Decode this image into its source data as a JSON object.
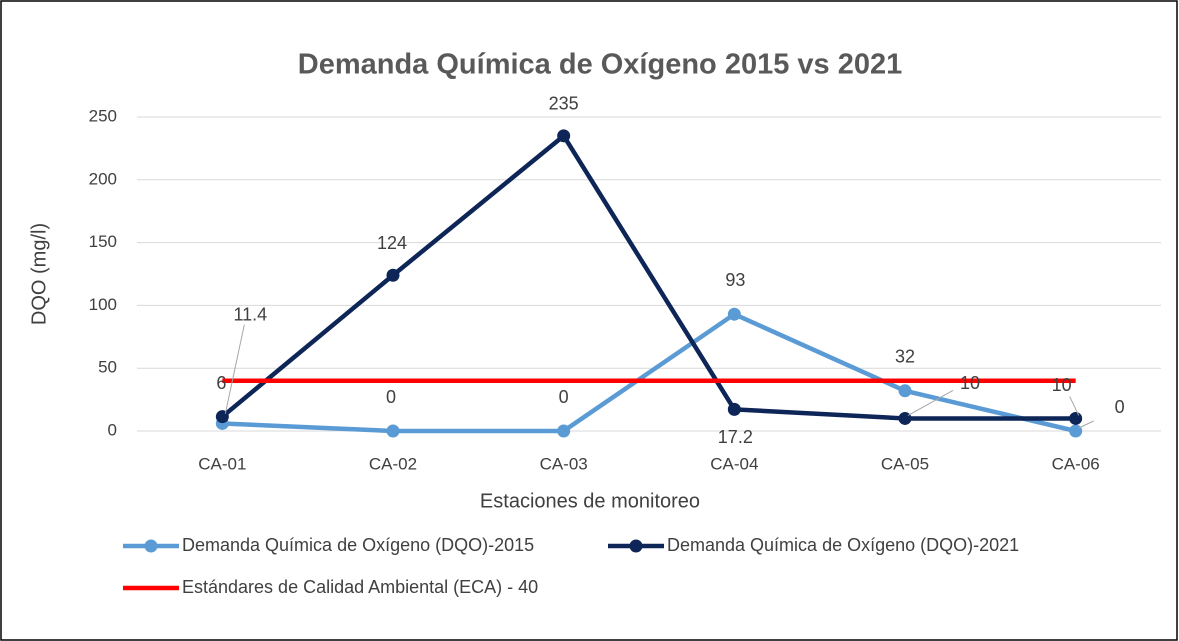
{
  "chart_data": {
    "type": "line",
    "title": "Demanda Química de Oxígeno 2015 vs 2021",
    "x_label": "Estaciones de monitoreo",
    "y_label": "DQO (mg/l)",
    "categories": [
      "CA-01",
      "CA-02",
      "CA-03",
      "CA-04",
      "CA-05",
      "CA-06"
    ],
    "series": [
      {
        "name": "Demanda Química de Oxígeno (DQO)-2015",
        "color": "#5b9bd5",
        "markers": true,
        "data_labels": true,
        "values": [
          6,
          0,
          0,
          93,
          32,
          0
        ]
      },
      {
        "name": "Demanda Química de Oxígeno (DQO)-2021",
        "color": "#0e2557",
        "markers": true,
        "data_labels": true,
        "values": [
          11.4,
          124,
          235,
          17.2,
          10,
          10
        ]
      },
      {
        "name": "Estándares de Calidad Ambiental (ECA) - 40",
        "color": "#ff0000",
        "markers": false,
        "data_labels": false,
        "values": [
          40,
          40,
          40,
          40,
          40,
          40
        ]
      }
    ],
    "ylim": [
      0,
      250
    ],
    "yticks": [
      0,
      50,
      100,
      150,
      200,
      250
    ],
    "grid": true,
    "legend": "bottom"
  }
}
